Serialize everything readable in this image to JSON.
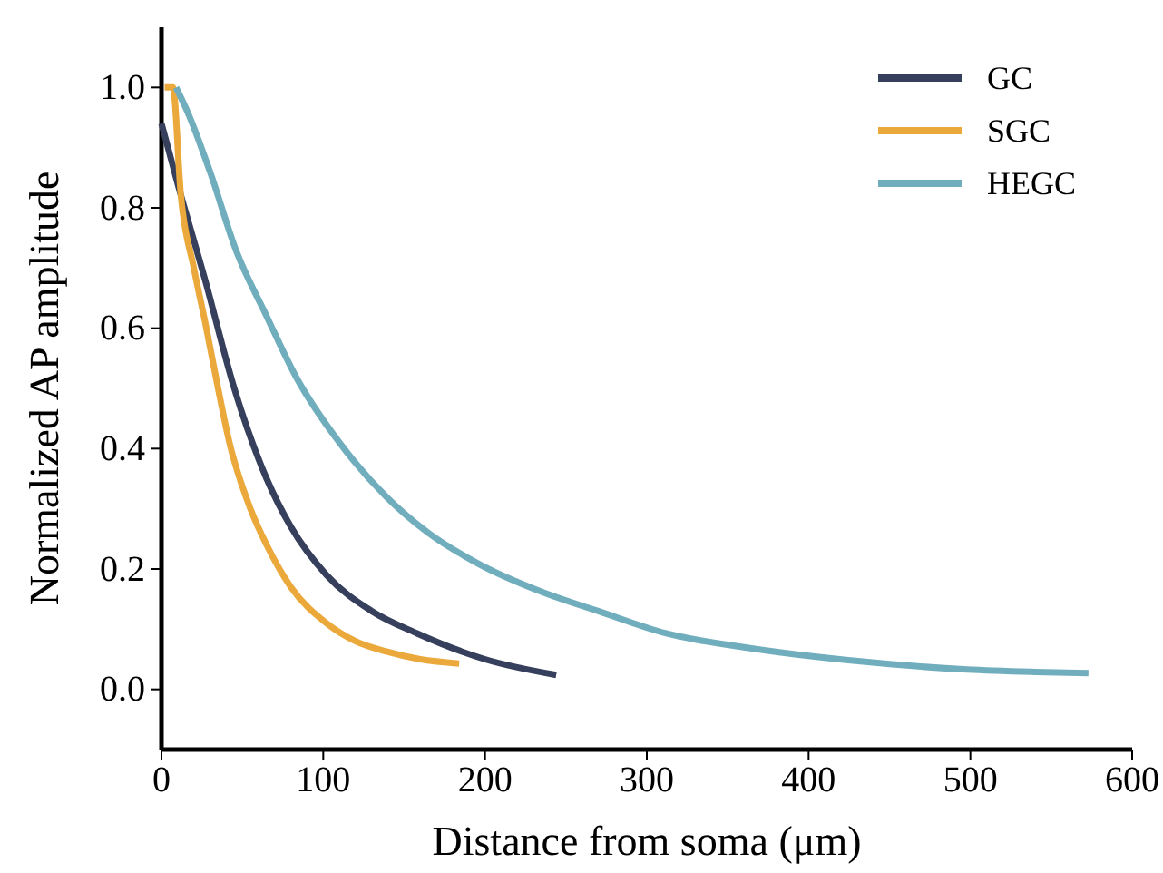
{
  "chart_data": {
    "type": "line",
    "xlabel": "Distance from soma (μm)",
    "ylabel": "Normalized AP amplitude",
    "xlim": [
      0,
      600
    ],
    "xticks": [
      0,
      100,
      200,
      300,
      400,
      500,
      600
    ],
    "ylim": [
      -0.1,
      1.1
    ],
    "yticks": [
      {
        "value": 0,
        "label": "0.0"
      },
      {
        "value": 0.2,
        "label": "0.2"
      },
      {
        "value": 0.4,
        "label": "0.4"
      },
      {
        "value": 0.6,
        "label": "0.6"
      },
      {
        "value": 0.8,
        "label": "0.8"
      },
      {
        "value": 1,
        "label": "1.0"
      }
    ],
    "grid": false,
    "legend": "top right",
    "marker": "none",
    "line_style": "solid",
    "series": [
      {
        "name": "GC",
        "color": "#363f5b",
        "x": [
          0,
          10,
          27,
          45,
          65,
          80,
          102,
          130,
          158,
          200,
          244
        ],
        "values": [
          0.94,
          0.84,
          0.68,
          0.5,
          0.35,
          0.27,
          0.19,
          0.13,
          0.093,
          0.05,
          0.024
        ]
      },
      {
        "name": "SGC",
        "color": "#eaa93a",
        "x": [
          2,
          7,
          12,
          20,
          27,
          35,
          42,
          55,
          65,
          80,
          102,
          120,
          139,
          160,
          184
        ],
        "values": [
          1.0,
          1.0,
          0.82,
          0.7,
          0.61,
          0.5,
          0.41,
          0.3,
          0.24,
          0.17,
          0.11,
          0.08,
          0.063,
          0.05,
          0.043
        ]
      },
      {
        "name": "HEGC",
        "color": "#70aebd",
        "x": [
          9,
          16,
          30,
          46,
          65,
          83,
          110,
          139,
          165,
          195,
          237,
          270,
          312,
          360,
          405,
          450,
          498,
          540,
          573
        ],
        "values": [
          1.0,
          0.96,
          0.86,
          0.73,
          0.62,
          0.52,
          0.41,
          0.32,
          0.26,
          0.21,
          0.16,
          0.13,
          0.093,
          0.07,
          0.054,
          0.042,
          0.033,
          0.029,
          0.027
        ]
      }
    ]
  }
}
